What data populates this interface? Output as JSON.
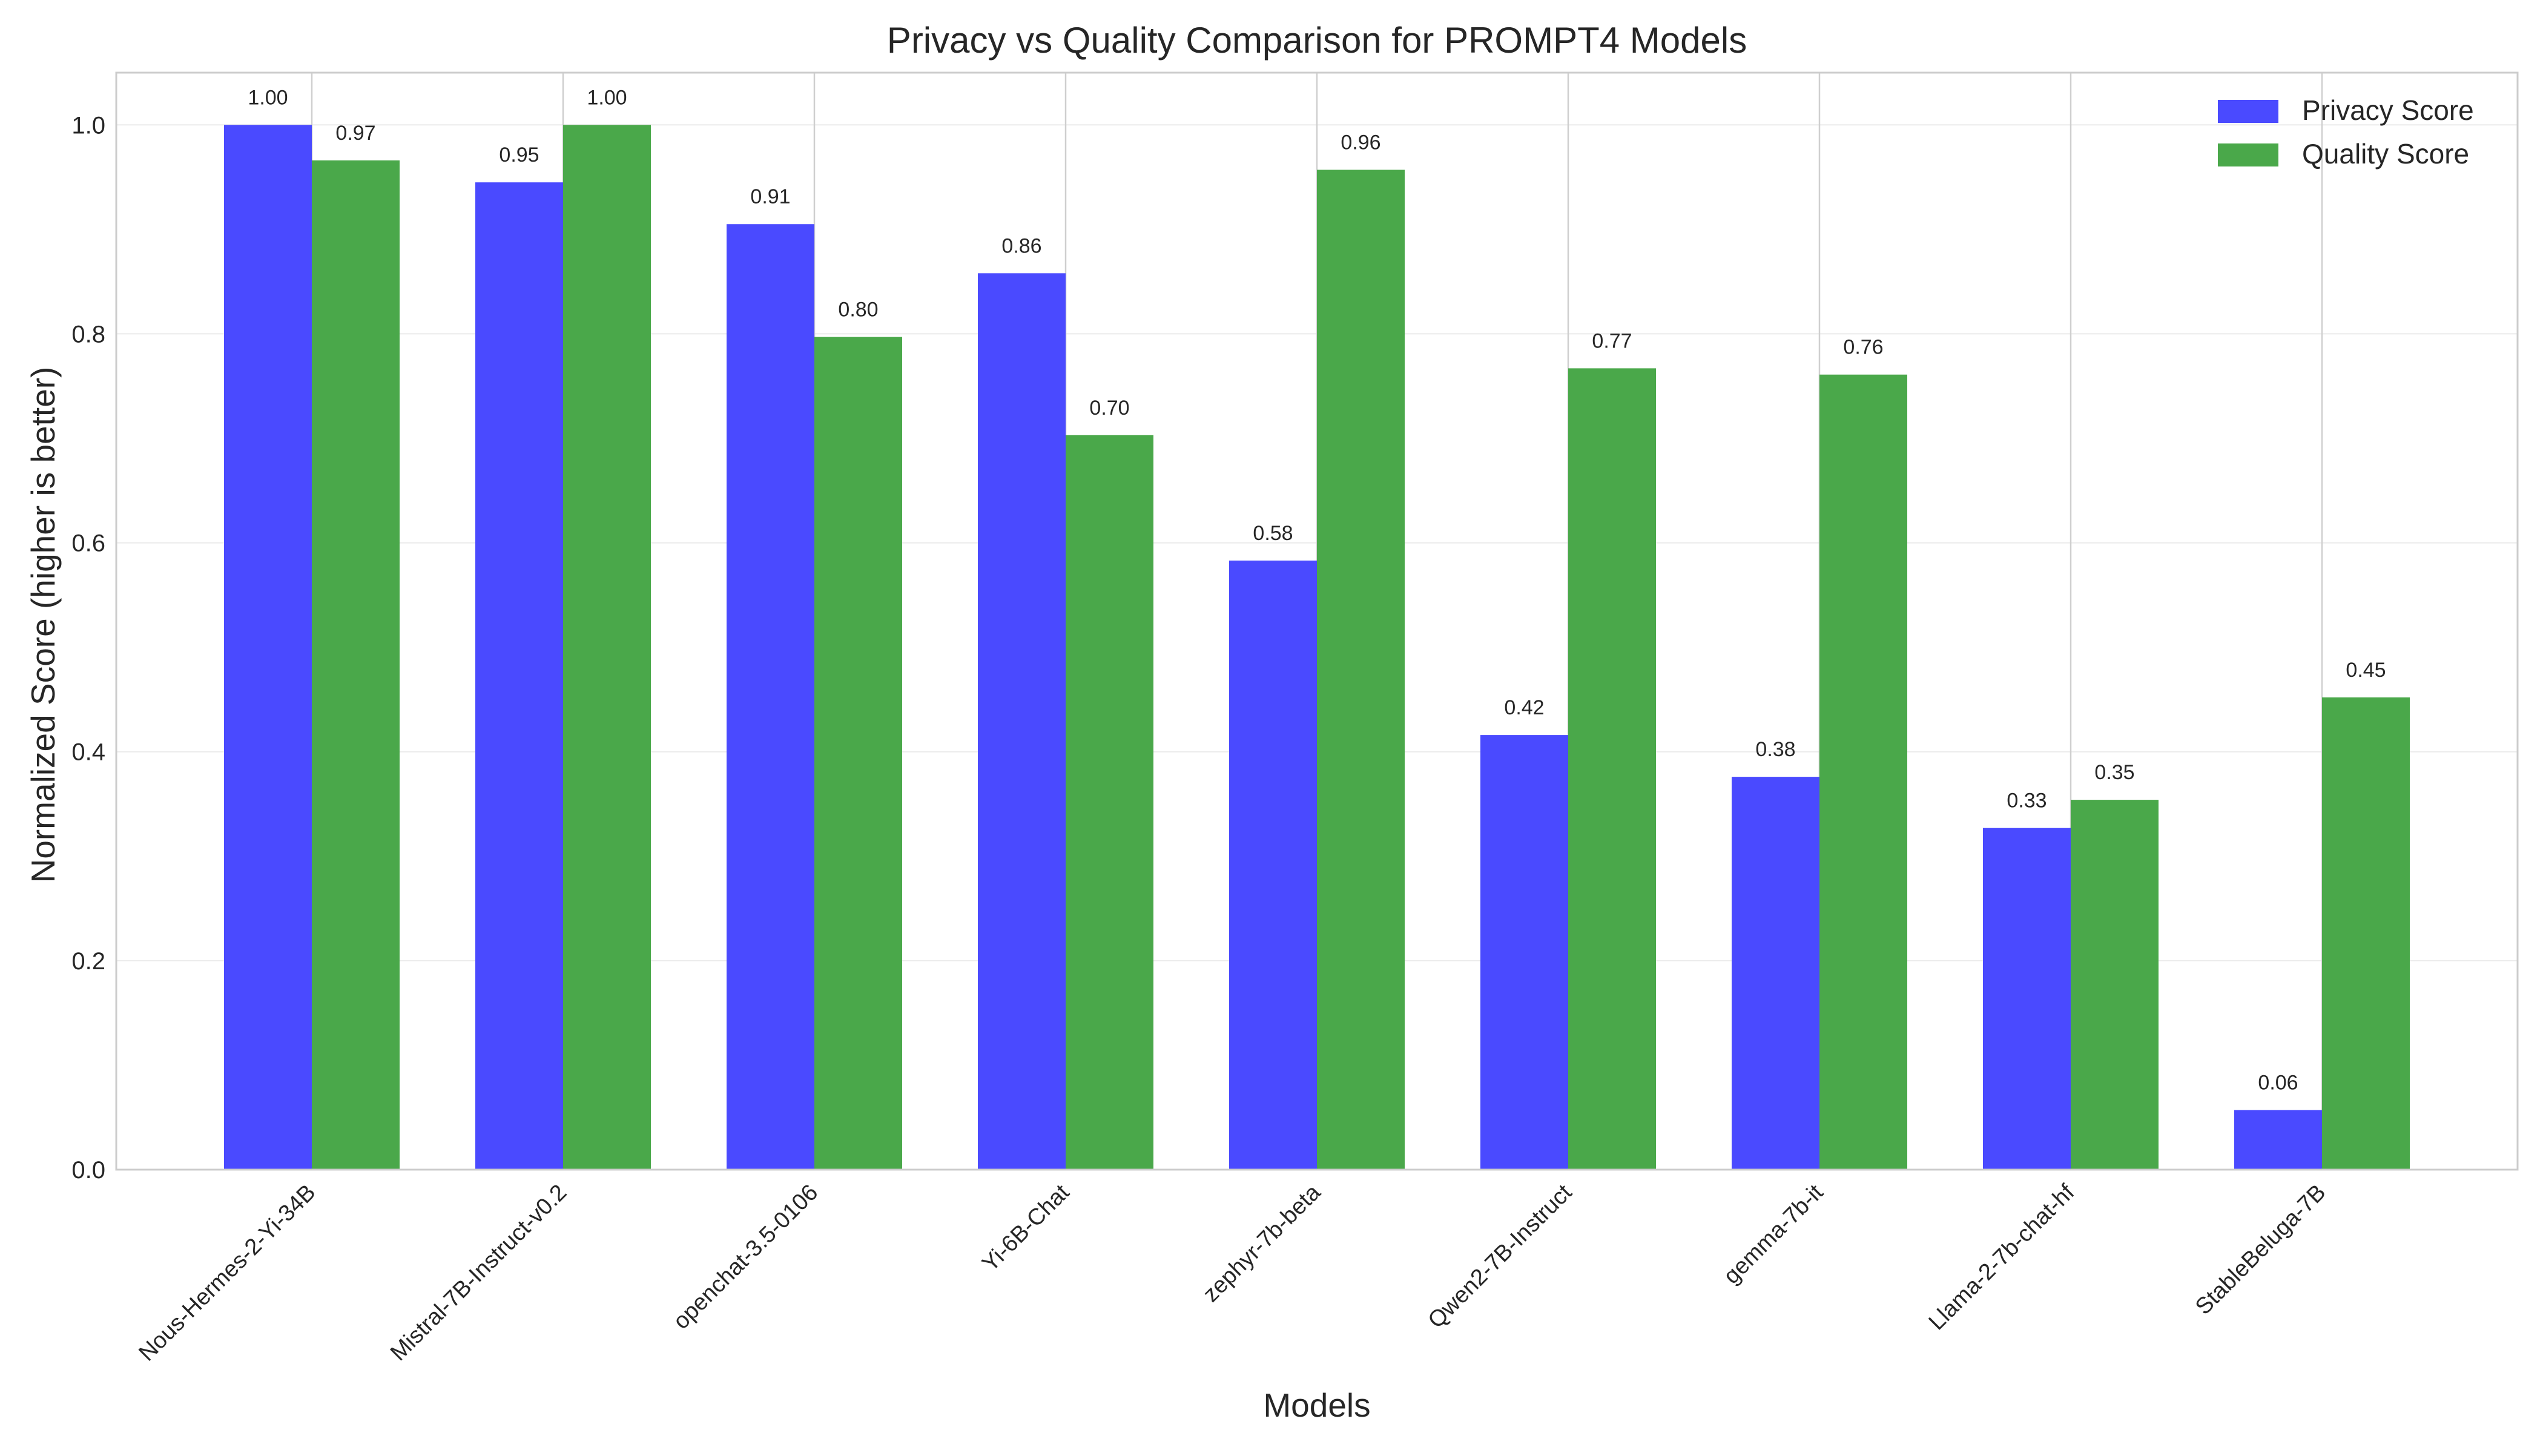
{
  "chart_data": {
    "type": "bar",
    "title": "Privacy vs Quality Comparison for PROMPT4 Models",
    "xlabel": "Models",
    "ylabel": "Normalized Score (higher is better)",
    "ylim": [
      0,
      1.05
    ],
    "yticks": [
      0.0,
      0.2,
      0.4,
      0.6,
      0.8,
      1.0
    ],
    "grid": true,
    "legend_position": "top-right",
    "categories": [
      "Nous-Hermes-2-Yi-34B",
      "Mistral-7B-Instruct-v0.2",
      "openchat-3.5-0106",
      "Yi-6B-Chat",
      "zephyr-7b-beta",
      "Qwen2-7B-Instruct",
      "gemma-7b-it",
      "Llama-2-7b-chat-hf",
      "StableBeluga-7B"
    ],
    "series": [
      {
        "name": "Privacy Score",
        "color": "#4a4aff",
        "values": [
          1.0,
          0.945,
          0.905,
          0.858,
          0.583,
          0.416,
          0.376,
          0.327,
          0.057
        ],
        "labels": [
          "1.00",
          "0.95",
          "0.91",
          "0.86",
          "0.58",
          "0.42",
          "0.38",
          "0.33",
          "0.06"
        ]
      },
      {
        "name": "Quality Score",
        "color": "#4aa84a",
        "values": [
          0.966,
          1.0,
          0.797,
          0.703,
          0.957,
          0.767,
          0.761,
          0.354,
          0.452
        ],
        "labels": [
          "0.97",
          "1.00",
          "0.80",
          "0.70",
          "0.96",
          "0.77",
          "0.76",
          "0.35",
          "0.45"
        ]
      }
    ]
  }
}
